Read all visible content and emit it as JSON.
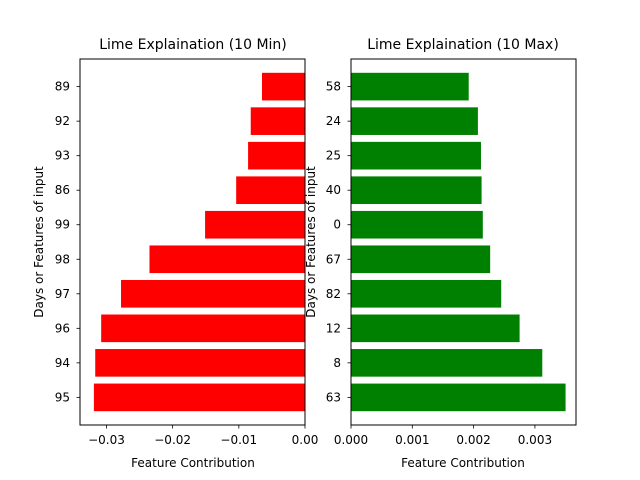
{
  "chart_data": [
    {
      "type": "bar",
      "orientation": "horizontal",
      "title": "Lime Explaination (10 Min)",
      "xlabel": "Feature Contribution",
      "ylabel": "Days or Features of input",
      "xlim": [
        -0.034,
        0.0
      ],
      "xticks": [
        -0.03,
        -0.02,
        -0.01,
        0.0
      ],
      "xtick_labels": [
        "−0.03",
        "−0.02",
        "−0.01",
        "0.00"
      ],
      "categories": [
        "95",
        "94",
        "96",
        "97",
        "98",
        "99",
        "86",
        "93",
        "92",
        "89"
      ],
      "values": [
        -0.0319,
        -0.0317,
        -0.0308,
        -0.0278,
        -0.0235,
        -0.0151,
        -0.0104,
        -0.0086,
        -0.0082,
        -0.0065
      ],
      "color": "#ff0000",
      "grid": false
    },
    {
      "type": "bar",
      "orientation": "horizontal",
      "title": "Lime Explaination (10 Max)",
      "xlabel": "Feature Contribution",
      "ylabel": "Days or Features of input",
      "xlim": [
        0.0,
        0.00367
      ],
      "xticks": [
        0.0,
        0.001,
        0.002,
        0.003
      ],
      "xtick_labels": [
        "0.000",
        "0.001",
        "0.002",
        "0.003"
      ],
      "categories": [
        "63",
        "8",
        "12",
        "82",
        "67",
        "0",
        "40",
        "25",
        "24",
        "58"
      ],
      "values": [
        0.0035,
        0.00312,
        0.00275,
        0.00245,
        0.00227,
        0.00215,
        0.00213,
        0.00212,
        0.00207,
        0.00192
      ],
      "color": "#008000",
      "grid": false
    }
  ]
}
